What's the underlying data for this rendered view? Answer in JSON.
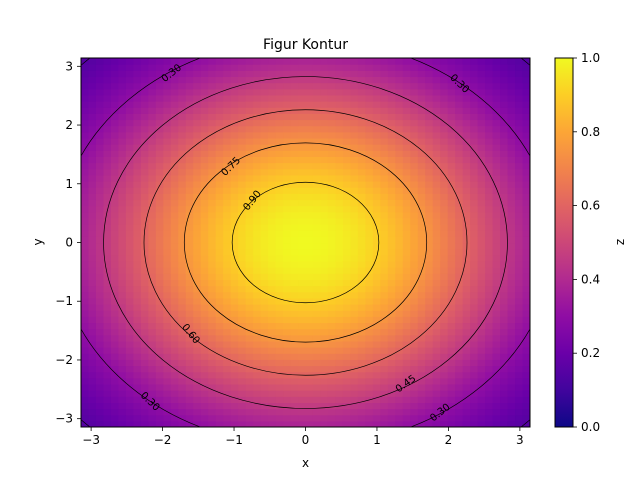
{
  "chart_data": {
    "type": "heatmap",
    "title": "Figur Kontur",
    "xlabel": "x",
    "ylabel": "y",
    "colorbar_label": "z",
    "colormap": "plasma",
    "function": "exp(-(x^2+y^2)/10)",
    "xlim": [
      -3.14159,
      3.14159
    ],
    "ylim": [
      -3.14159,
      3.14159
    ],
    "zlim": [
      0.0,
      1.0
    ],
    "x_ticks": [
      -3,
      -2,
      -1,
      0,
      1,
      2,
      3
    ],
    "x_tick_labels": [
      "−3",
      "−2",
      "−1",
      "0",
      "1",
      "2",
      "3"
    ],
    "y_ticks": [
      -3,
      -2,
      -1,
      0,
      1,
      2,
      3
    ],
    "y_tick_labels": [
      "−3",
      "−2",
      "−1",
      "0",
      "1",
      "2",
      "3"
    ],
    "colorbar_ticks": [
      0.0,
      0.2,
      0.4,
      0.6,
      0.8,
      1.0
    ],
    "colorbar_tick_labels": [
      "0.0",
      "0.2",
      "0.4",
      "0.6",
      "0.8",
      "1.0"
    ],
    "contour_levels": [
      0.15,
      0.3,
      0.45,
      0.6,
      0.75,
      0.9
    ],
    "contour_labels": [
      {
        "text": "0.30",
        "x": -1.88,
        "y": 2.89
      },
      {
        "text": "0.30",
        "x": 2.16,
        "y": 2.71
      },
      {
        "text": "0.75",
        "x": -1.05,
        "y": 1.3
      },
      {
        "text": "0.90",
        "x": -0.75,
        "y": 0.72
      },
      {
        "text": "0.60",
        "x": -1.6,
        "y": -1.55
      },
      {
        "text": "0.45",
        "x": 1.4,
        "y": -2.4
      },
      {
        "text": "0.30",
        "x": -2.17,
        "y": -2.7
      },
      {
        "text": "0.30",
        "x": 1.88,
        "y": -2.89
      }
    ]
  }
}
